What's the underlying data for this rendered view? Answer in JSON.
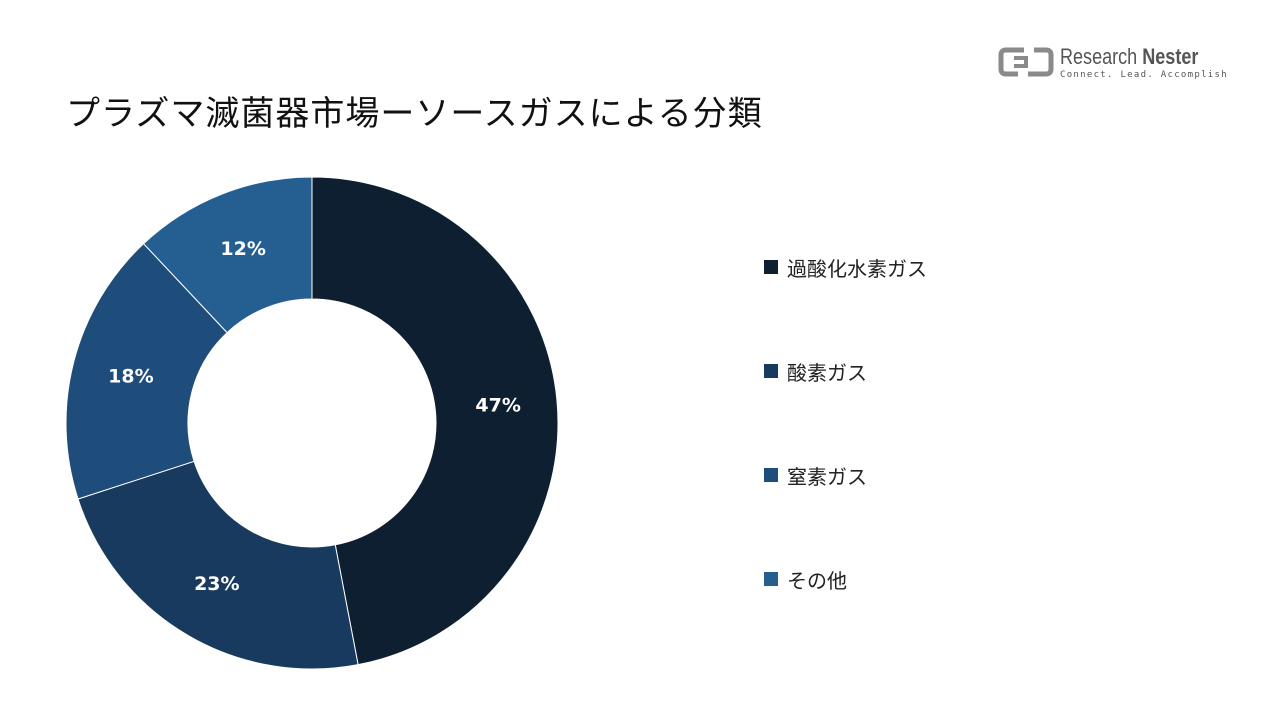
{
  "page": {
    "title": "プラズマ滅菌器市場ーソースガスによる分類"
  },
  "logo": {
    "name_light": "Research",
    "name_bold": "Nester",
    "tagline": "Connect. Lead. Accomplish"
  },
  "chart_data": {
    "type": "pie",
    "variant": "donut",
    "title": "プラズマ滅菌器市場ーソースガスによる分類",
    "categories": [
      "過酸化水素ガス",
      "酸素ガス",
      "窒素ガス",
      "その他"
    ],
    "values": [
      47,
      23,
      18,
      12
    ],
    "labels": [
      "47%",
      "23%",
      "18%",
      "12%"
    ],
    "colors": [
      "#0d1f30",
      "#183a5e",
      "#1f4d7b",
      "#255f91"
    ],
    "legend_position": "right"
  }
}
